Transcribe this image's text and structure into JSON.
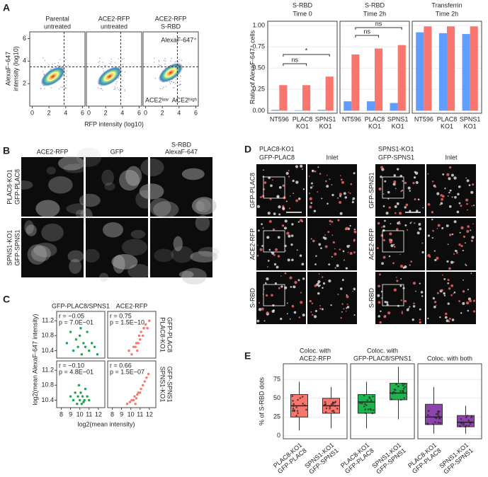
{
  "panel_labels": [
    "A",
    "B",
    "C",
    "D",
    "E"
  ],
  "chart_data": [
    {
      "type": "flow",
      "panels": [
        [
          "Parental",
          "untreated"
        ],
        [
          "ACE2-RFP",
          "untreated"
        ],
        [
          "ACE2-RFP",
          "S-RBD"
        ]
      ],
      "xlabel": "RFP intensity (log10)",
      "ylabel": [
        "AlexaF−647",
        "intensity (log10)"
      ],
      "xlim": [
        -0.3,
        6.3
      ],
      "ylim": [
        0,
        6.6
      ],
      "xticks": [
        0,
        2,
        4,
        6
      ],
      "yticks": [
        2,
        4,
        6
      ],
      "gate_x": 3.8,
      "gate_y": 3.5,
      "annotations": {
        "positive": "AlexaF-647⁺",
        "low": "ACE2ˡᵒʷ",
        "high": "ACE2ʰⁱᵍʰ"
      },
      "low_color": "#619cff",
      "high_color": "#f8766d"
    },
    {
      "type": "bar",
      "ylabel": "Ratio of AlexaF-647⁺ cells",
      "categories": [
        [
          "NT596"
        ],
        [
          "PLAC8",
          "KO1"
        ],
        [
          "SPNS1",
          "KO1"
        ]
      ],
      "ylim": [
        -0.03,
        1.05
      ],
      "yticks": [
        {
          "value": 0,
          "label": "0.00"
        },
        {
          "value": 0.25,
          "label": "0.25"
        },
        {
          "value": 0.5,
          "label": "0.50"
        },
        {
          "value": 0.75,
          "label": "0.75"
        },
        {
          "value": 1,
          "label": "1.00"
        }
      ],
      "facets": [
        {
          "title": [
            "S-RBD",
            "Time 0"
          ],
          "series": [
            {
              "color": "#619cff",
              "values": [
                0.01,
                0.005,
                0.01
              ]
            },
            {
              "color": "#f8766d",
              "values": [
                0.3,
                0.3,
                0.4
              ]
            }
          ],
          "annotations": [
            "ns",
            "*"
          ]
        },
        {
          "title": [
            "S-RBD",
            "Time 2h"
          ],
          "series": [
            {
              "color": "#619cff",
              "values": [
                0.11,
                0.11,
                0.09
              ]
            },
            {
              "color": "#f8766d",
              "values": [
                0.66,
                0.73,
                0.77
              ]
            }
          ],
          "annotations": [
            "ns",
            "ns"
          ]
        },
        {
          "title": [
            "Transferrin",
            "Time 2h"
          ],
          "series": [
            {
              "color": "#619cff",
              "values": [
                0.92,
                0.91,
                0.9
              ]
            },
            {
              "color": "#f8766d",
              "values": [
                0.99,
                0.99,
                0.99
              ]
            }
          ]
        }
      ]
    },
    {
      "type": "scatter",
      "columns": [
        "GFP-PLAC8/SPNS1",
        "ACE2-RFP"
      ],
      "rows": [
        [
          "PLAC8-KO1",
          "GFP-PLAC8"
        ],
        [
          "SPNS1-KO1",
          "GFP-SPNS1"
        ]
      ],
      "xlabel": "log2(mean intensity)",
      "ylabel": "log2(mean AlexaF-647 intensity)",
      "xlim": [
        7.5,
        12.7
      ],
      "ylim": [
        10.2,
        11.45
      ],
      "xticks": [
        8,
        9,
        10,
        11,
        12
      ],
      "yticks": [
        10.4,
        10.8,
        11.2
      ],
      "panels": [
        {
          "stats": [
            "r = −0.05",
            "p = 7.0E−01"
          ],
          "color": "#1aa64a",
          "x": [
            8.6,
            9.0,
            9.3,
            9.6,
            9.8,
            10.0,
            10.2,
            10.4,
            10.6,
            10.8,
            11.0,
            11.3,
            11.6,
            11.9,
            10.1
          ],
          "y": [
            10.6,
            10.9,
            10.4,
            10.7,
            10.5,
            10.8,
            10.3,
            10.6,
            10.5,
            10.9,
            10.4,
            10.6,
            10.5,
            10.3,
            11.0
          ]
        },
        {
          "stats": [
            "r = 0.75",
            "p = 1.5E−10"
          ],
          "color": "#f8766d",
          "x": [
            9.8,
            10.1,
            10.3,
            10.5,
            10.6,
            10.8,
            10.9,
            11.0,
            11.1,
            11.3,
            11.4,
            11.6,
            11.8,
            12.0,
            10.7
          ],
          "y": [
            10.4,
            10.3,
            10.5,
            10.5,
            10.6,
            10.6,
            10.8,
            10.7,
            10.9,
            10.8,
            11.0,
            11.1,
            11.0,
            11.2,
            10.4
          ]
        },
        {
          "stats": [
            "r = −0.10",
            "p = 4.8E−01"
          ],
          "color": "#1aa64a",
          "x": [
            9.0,
            9.3,
            9.5,
            9.7,
            9.8,
            10.0,
            10.1,
            10.2,
            10.3,
            10.5,
            10.6,
            10.8,
            11.0,
            9.9,
            10.4
          ],
          "y": [
            10.5,
            10.4,
            10.6,
            10.3,
            10.5,
            10.4,
            10.6,
            10.3,
            10.5,
            10.4,
            10.7,
            10.5,
            10.4,
            10.8,
            10.35
          ]
        },
        {
          "stats": [
            "r = 0.66",
            "p = 1.5E−07"
          ],
          "color": "#f8766d",
          "x": [
            9.6,
            9.9,
            10.1,
            10.3,
            10.4,
            10.6,
            10.7,
            10.8,
            11.0,
            11.1,
            11.3,
            11.5,
            11.7,
            11.9,
            10.5
          ],
          "y": [
            10.3,
            10.35,
            10.4,
            10.4,
            10.5,
            10.45,
            10.55,
            10.6,
            10.6,
            10.7,
            10.8,
            10.9,
            11.0,
            11.1,
            10.3
          ]
        }
      ]
    },
    {
      "type": "box",
      "ylabel": "% of S-RBD dots",
      "categories": [
        [
          "PLAC8-KO1",
          "GFP-PLAC8"
        ],
        [
          "SPNS1-KO1",
          "GFP-SPNS1"
        ]
      ],
      "ylim": [
        -4,
        96
      ],
      "yticks": [
        0,
        25,
        50,
        75
      ],
      "facets": [
        {
          "title": [
            "Coloc. with",
            "ACE2-RFP"
          ],
          "color": "#f8766d",
          "boxes": [
            {
              "min": 7,
              "q1": 25,
              "median": 40,
              "q3": 55,
              "max": 72
            },
            {
              "min": 10,
              "q1": 30,
              "median": 40,
              "q3": 50,
              "max": 65
            }
          ]
        },
        {
          "title": [
            "Coloc. with",
            "GFP-PLAC8/SPNS1"
          ],
          "color": "#1fb34f",
          "boxes": [
            {
              "min": 10,
              "q1": 30,
              "median": 45,
              "q3": 55,
              "max": 72
            },
            {
              "min": 22,
              "q1": 48,
              "median": 57,
              "q3": 70,
              "max": 92
            }
          ]
        },
        {
          "title": [
            "Coloc. with both"
          ],
          "color": "#8e44ad",
          "boxes": [
            {
              "min": 3,
              "q1": 15,
              "median": 25,
              "q3": 42,
              "max": 65
            },
            {
              "min": 3,
              "q1": 12,
              "median": 18,
              "q3": 27,
              "max": 40
            }
          ]
        }
      ]
    }
  ],
  "figB": {
    "columns": [
      [
        "ACE2-RFP"
      ],
      [
        "GFP"
      ],
      [
        "S-RBD",
        "AlexaF-647"
      ]
    ],
    "rows": [
      [
        "PLAC8-KO1",
        "GFP-PLAC8"
      ],
      [
        "SPNS1-KO1",
        "GFP-SPNS1"
      ]
    ]
  },
  "figD": {
    "groups": [
      {
        "title": [
          "PLAC8-KO1",
          "GFP-PLAC8"
        ],
        "inlet": "Inlet",
        "rows": [
          "GFP-PLAC8",
          "ACE2-RFP",
          "S-RBD"
        ]
      },
      {
        "title": [
          "SPNS1-KO1",
          "GFP-SPNS1"
        ],
        "inlet": "Inlet",
        "rows": [
          "GFP-SPNS1",
          "ACE2-RFP",
          "S-RBD"
        ]
      }
    ]
  }
}
